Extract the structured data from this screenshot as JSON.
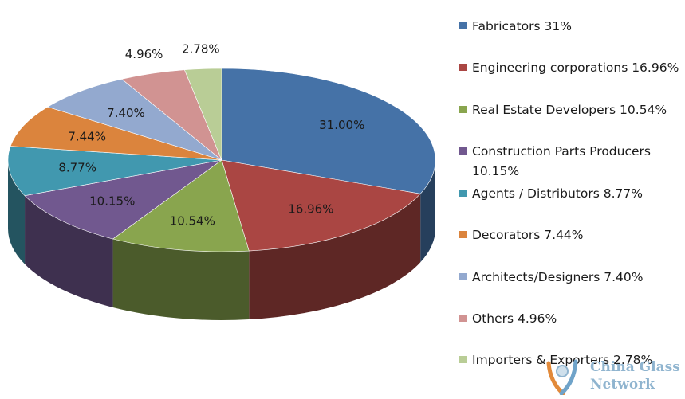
{
  "chart_data": {
    "type": "pie",
    "three_d": true,
    "legend_position": "right",
    "title": "",
    "slices": [
      {
        "label": "31.00%",
        "value": 31.0,
        "color": "#4572a7",
        "legend": "Fabricators 31%"
      },
      {
        "label": "16.96%",
        "value": 16.96,
        "color": "#aa4643",
        "legend": "Engineering corporations 16.96%"
      },
      {
        "label": "10.54%",
        "value": 10.54,
        "color": "#89a54e",
        "legend": "Real Estate Developers 10.54%"
      },
      {
        "label": "10.15%",
        "value": 10.15,
        "color": "#71588f",
        "legend": "Construction Parts Producers 10.15%"
      },
      {
        "label": "8.77%",
        "value": 8.77,
        "color": "#4198af",
        "legend": "Agents / Distributors 8.77%"
      },
      {
        "label": "7.44%",
        "value": 7.44,
        "color": "#db843d",
        "legend": "Decorators 7.44%"
      },
      {
        "label": "7.40%",
        "value": 7.4,
        "color": "#93a9cf",
        "legend": "Architects/Designers 7.40%"
      },
      {
        "label": "4.96%",
        "value": 4.96,
        "color": "#d19392",
        "legend": "Others 4.96%"
      },
      {
        "label": "2.78%",
        "value": 2.78,
        "color": "#b9cd96",
        "legend": "Importers & Exporters 2.78%"
      }
    ]
  },
  "watermark": {
    "line1": "China Glass",
    "line2": "Network"
  }
}
